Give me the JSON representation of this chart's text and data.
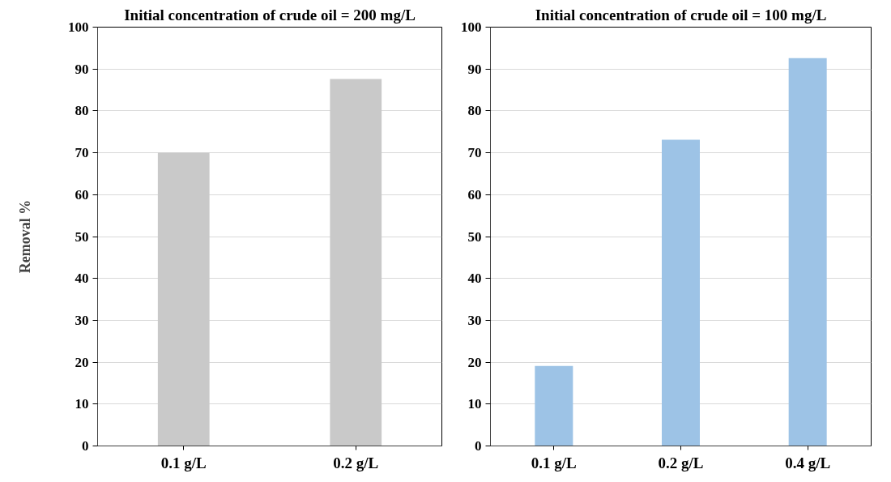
{
  "chart_data": [
    {
      "type": "bar",
      "title": "Initial concentration of crude oil = 200 mg/L",
      "ylabel": "Removal %",
      "categories": [
        "0.1 g/L",
        "0.2 g/L"
      ],
      "values": [
        70,
        87.6
      ],
      "color": "#c9c9c9",
      "ylim": [
        0,
        100
      ],
      "yticks": [
        0,
        10,
        20,
        30,
        40,
        50,
        60,
        70,
        80,
        90,
        100
      ],
      "grid": "y"
    },
    {
      "type": "bar",
      "title": "Initial concentration of crude oil = 100 mg/L",
      "categories": [
        "0.1 g/L",
        "0.2 g/L",
        "0.4 g/L"
      ],
      "values": [
        19.1,
        73.1,
        92.6
      ],
      "color": "#9dc3e6",
      "ylim": [
        0,
        100
      ],
      "yticks": [
        0,
        10,
        20,
        30,
        40,
        50,
        60,
        70,
        80,
        90,
        100
      ],
      "grid": "y"
    }
  ]
}
